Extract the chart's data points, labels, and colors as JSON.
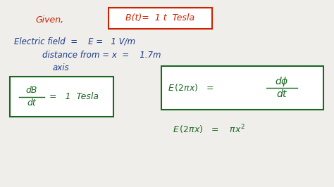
{
  "background_color": "#f0eeea",
  "given_text": "Given,",
  "given_color": "#cc2200",
  "bt_box_text": "B(t)=  1 t  Tesla",
  "bt_box_color": "#cc2200",
  "line1_text": "Electric field  =    E =   1 V/m",
  "line1_color": "#1a3a8a",
  "line2_text": "distance from = x  =    1.7m",
  "line2_color": "#1a3a8a",
  "line3_text": "axis",
  "line3_color": "#1a3a8a",
  "box1_color": "#1a6622",
  "box2_color": "#1a6622",
  "eq2_color": "#1a6622"
}
